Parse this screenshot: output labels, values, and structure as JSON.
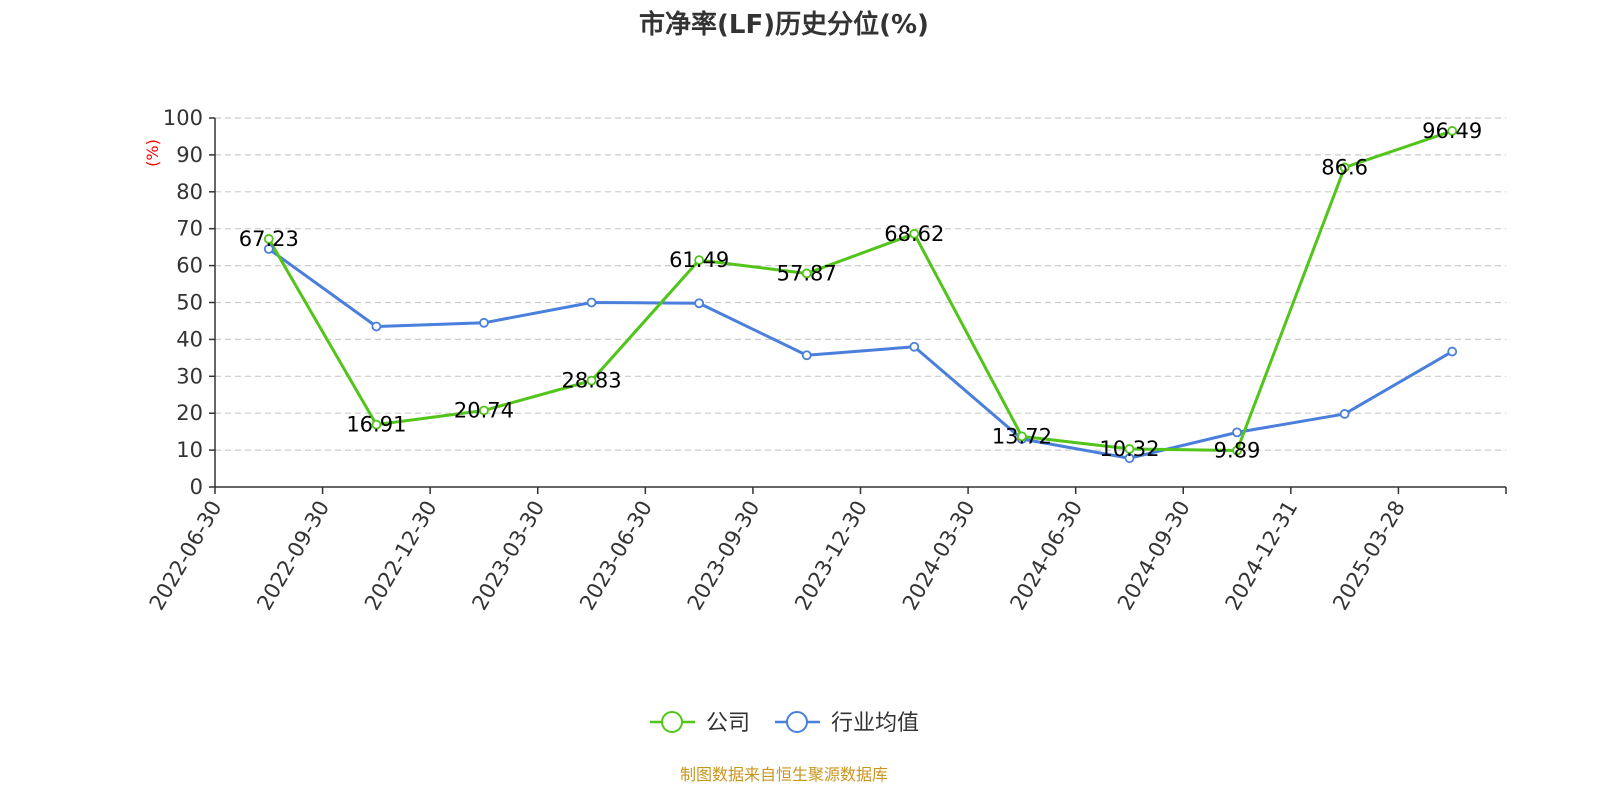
{
  "colors": {
    "company": "#52c41a",
    "industry": "#4a7fdc",
    "unit": "#ff0000",
    "source": "#c8961e",
    "grid": "#cccccc",
    "axis": "#333333"
  },
  "chart_data": {
    "type": "line",
    "title": "市净率(LF)历史分位(%)",
    "ylabel": "(%)",
    "ylim": [
      0,
      100
    ],
    "yticks": [
      0,
      10,
      20,
      30,
      40,
      50,
      60,
      70,
      80,
      90,
      100
    ],
    "grid": true,
    "legend_position": "bottom-center",
    "categories": [
      "2022-06-30",
      "2022-09-30",
      "2022-12-30",
      "2023-03-30",
      "2023-06-30",
      "2023-09-30",
      "2023-12-30",
      "2024-03-30",
      "2024-06-30",
      "2024-09-30",
      "2024-12-31",
      "2025-03-28"
    ],
    "series": [
      {
        "name": "公司",
        "color": "#52c41a",
        "values": [
          67.23,
          16.91,
          20.74,
          28.83,
          61.49,
          57.87,
          68.62,
          13.72,
          10.32,
          9.89,
          86.6,
          96.49
        ],
        "labels": [
          "67.23",
          "16.91",
          "20.74",
          "28.83",
          "61.49",
          "57.87",
          "68.62",
          "13.72",
          "10.32",
          "9.89",
          "86.6",
          "96.49"
        ]
      },
      {
        "name": "行业均值",
        "color": "#4a7fdc",
        "values": [
          64.5,
          43.5,
          44.5,
          50.0,
          49.8,
          35.7,
          38.0,
          13.0,
          7.8,
          14.8,
          19.8,
          36.7
        ]
      }
    ]
  },
  "source": "制图数据来自恒生聚源数据库"
}
